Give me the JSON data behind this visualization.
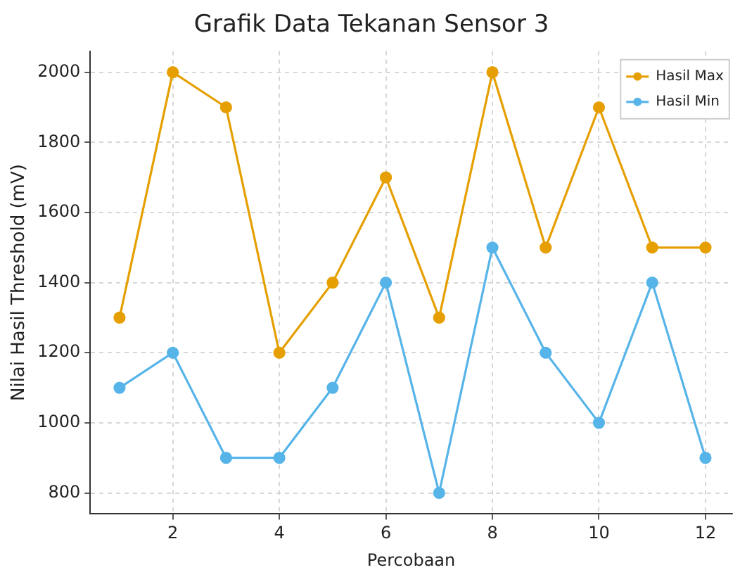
{
  "chart_data": {
    "type": "line",
    "title": "Grafik Data Tekanan Sensor 3",
    "xlabel": "Percobaan",
    "ylabel": "Nilai Hasil Threshold (mV)",
    "x": [
      1,
      2,
      3,
      4,
      5,
      6,
      7,
      8,
      9,
      10,
      11,
      12
    ],
    "series": [
      {
        "name": "Hasil Max",
        "color": "#e69f00",
        "values": [
          1300,
          2000,
          1900,
          1200,
          1400,
          1700,
          1300,
          2000,
          1500,
          1900,
          1500,
          1500
        ]
      },
      {
        "name": "Hasil Min",
        "color": "#56b4e9",
        "values": [
          1100,
          1200,
          900,
          900,
          1100,
          1400,
          800,
          1500,
          1200,
          1000,
          1400,
          900
        ]
      }
    ],
    "xlim": [
      0.45,
      12.5
    ],
    "xticks": [
      2,
      4,
      6,
      8,
      10,
      12
    ],
    "ylim": [
      740,
      2060
    ],
    "yticks": [
      800,
      1000,
      1200,
      1400,
      1600,
      1800,
      2000
    ],
    "grid": true,
    "legend": "top right",
    "marker": "circle",
    "line_style": "solid"
  }
}
